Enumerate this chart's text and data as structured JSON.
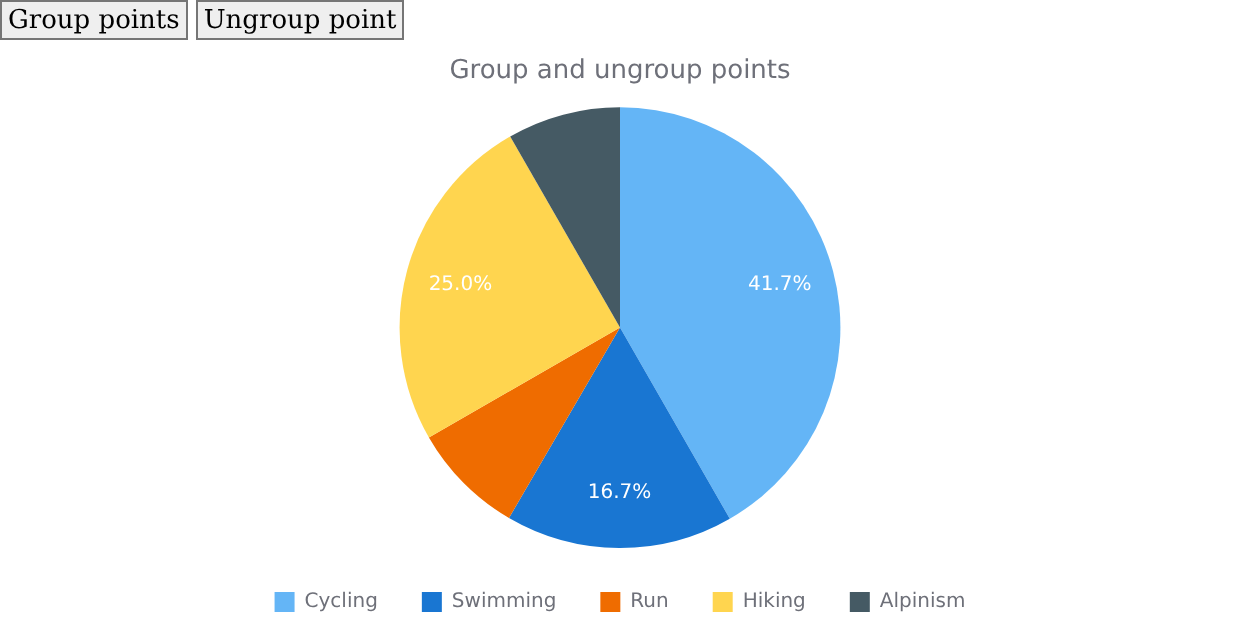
{
  "chart_data": {
    "type": "pie",
    "title": "Group and ungroup points",
    "categories": [
      "Cycling",
      "Swimming",
      "Run",
      "Hiking",
      "Alpinism"
    ],
    "values": [
      41.7,
      16.7,
      8.3,
      25.0,
      8.3
    ],
    "colors": [
      "#64b5f6",
      "#1976d2",
      "#ef6c00",
      "#ffd54f",
      "#455a64"
    ],
    "value_labels": [
      "41.7%",
      "16.7%",
      null,
      "25.0%",
      null
    ],
    "legend": "bottom",
    "annotations": [
      "Group points",
      "Ungroup point"
    ]
  }
}
